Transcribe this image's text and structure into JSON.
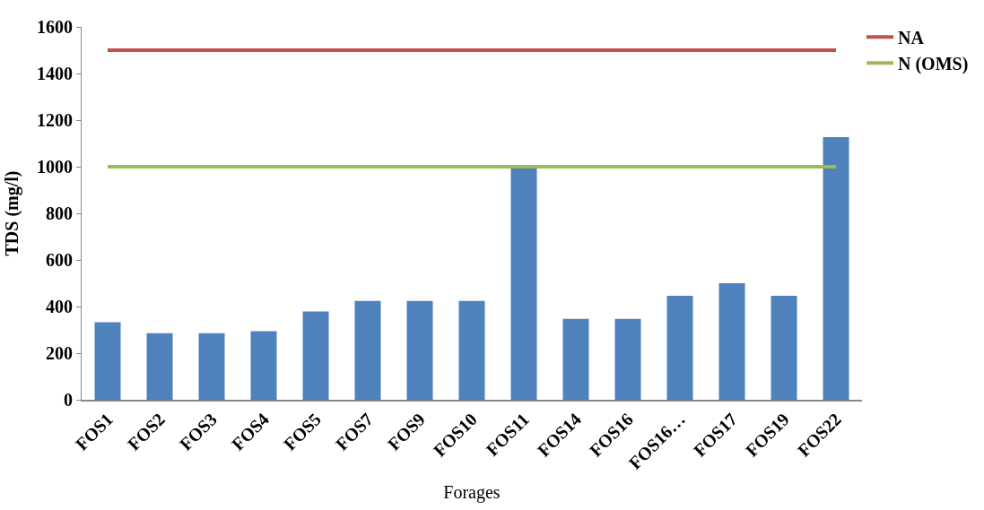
{
  "chart_data": {
    "type": "bar",
    "xlabel": "Forages",
    "ylabel": "TDS (mg/l)",
    "categories": [
      "FOS1",
      "FOS2",
      "FOS3",
      "FOS4",
      "FOS5",
      "FOS7",
      "FOS9",
      "FOS10",
      "FOS11",
      "FOS14",
      "FOS16",
      "FOS16…",
      "FOS17",
      "FOS19",
      "FOS22"
    ],
    "series": [
      {
        "color": "#4f81bd",
        "values": [
          333,
          286,
          286,
          294,
          379,
          424,
          424,
          424,
          995,
          347,
          347,
          446,
          500,
          446,
          1127
        ]
      },
      {
        "type": "line",
        "name": "NA",
        "color": "#c0504d",
        "values": [
          1500,
          1500,
          1500,
          1500,
          1500,
          1500,
          1500,
          1500,
          1500,
          1500,
          1500,
          1500,
          1500,
          1500,
          1500
        ]
      },
      {
        "type": "line",
        "name": "N (OMS)",
        "color": "#9bbb59",
        "values": [
          1000,
          1000,
          1000,
          1000,
          1000,
          1000,
          1000,
          1000,
          1000,
          1000,
          1000,
          1000,
          1000,
          1000,
          1000
        ]
      }
    ],
    "ylim": [
      0,
      1600
    ],
    "yticks": [
      0,
      200,
      400,
      600,
      800,
      1000,
      1200,
      1400,
      1600
    ],
    "legend": "top right",
    "marker": "none",
    "line_style": "solid"
  }
}
